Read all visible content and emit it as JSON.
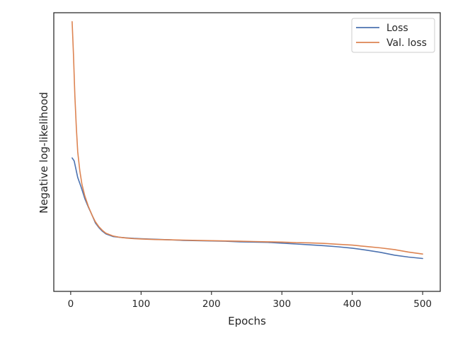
{
  "chart_data": {
    "type": "line",
    "title": "",
    "xlabel": "Epochs",
    "ylabel": "Negative log-likelihood",
    "xlim": [
      -24,
      525
    ],
    "ylim": [
      0,
      1
    ],
    "x_ticks": [
      0,
      100,
      200,
      300,
      400,
      500
    ],
    "y_ticks_shown": false,
    "grid": false,
    "legend_position": "top-right",
    "series": [
      {
        "name": "Loss",
        "color": "#4c72b0",
        "points": [
          [
            2,
            0.479
          ],
          [
            5,
            0.468
          ],
          [
            10,
            0.409
          ],
          [
            15,
            0.373
          ],
          [
            20,
            0.333
          ],
          [
            25,
            0.303
          ],
          [
            30,
            0.276
          ],
          [
            35,
            0.246
          ],
          [
            40,
            0.229
          ],
          [
            45,
            0.216
          ],
          [
            50,
            0.206
          ],
          [
            60,
            0.197
          ],
          [
            70,
            0.194
          ],
          [
            80,
            0.192
          ],
          [
            90,
            0.19
          ],
          [
            100,
            0.189
          ],
          [
            120,
            0.187
          ],
          [
            140,
            0.185
          ],
          [
            160,
            0.183
          ],
          [
            180,
            0.182
          ],
          [
            200,
            0.181
          ],
          [
            220,
            0.18
          ],
          [
            240,
            0.178
          ],
          [
            260,
            0.177
          ],
          [
            280,
            0.176
          ],
          [
            300,
            0.173
          ],
          [
            320,
            0.17
          ],
          [
            340,
            0.167
          ],
          [
            360,
            0.164
          ],
          [
            380,
            0.16
          ],
          [
            400,
            0.155
          ],
          [
            420,
            0.148
          ],
          [
            440,
            0.14
          ],
          [
            460,
            0.13
          ],
          [
            480,
            0.123
          ],
          [
            500,
            0.118
          ]
        ]
      },
      {
        "name": "Val. loss",
        "color": "#dd8452",
        "points": [
          [
            2,
            0.968
          ],
          [
            4,
            0.85
          ],
          [
            6,
            0.7
          ],
          [
            8,
            0.59
          ],
          [
            10,
            0.501
          ],
          [
            13,
            0.432
          ],
          [
            16,
            0.384
          ],
          [
            20,
            0.343
          ],
          [
            25,
            0.306
          ],
          [
            30,
            0.275
          ],
          [
            35,
            0.25
          ],
          [
            40,
            0.232
          ],
          [
            45,
            0.219
          ],
          [
            50,
            0.209
          ],
          [
            60,
            0.199
          ],
          [
            70,
            0.194
          ],
          [
            80,
            0.191
          ],
          [
            90,
            0.189
          ],
          [
            100,
            0.188
          ],
          [
            120,
            0.186
          ],
          [
            140,
            0.185
          ],
          [
            160,
            0.184
          ],
          [
            180,
            0.183
          ],
          [
            200,
            0.182
          ],
          [
            220,
            0.181
          ],
          [
            240,
            0.18
          ],
          [
            260,
            0.179
          ],
          [
            280,
            0.178
          ],
          [
            300,
            0.177
          ],
          [
            320,
            0.175
          ],
          [
            340,
            0.174
          ],
          [
            360,
            0.172
          ],
          [
            380,
            0.169
          ],
          [
            400,
            0.166
          ],
          [
            420,
            0.161
          ],
          [
            440,
            0.156
          ],
          [
            460,
            0.15
          ],
          [
            480,
            0.141
          ],
          [
            500,
            0.134
          ]
        ]
      }
    ]
  }
}
